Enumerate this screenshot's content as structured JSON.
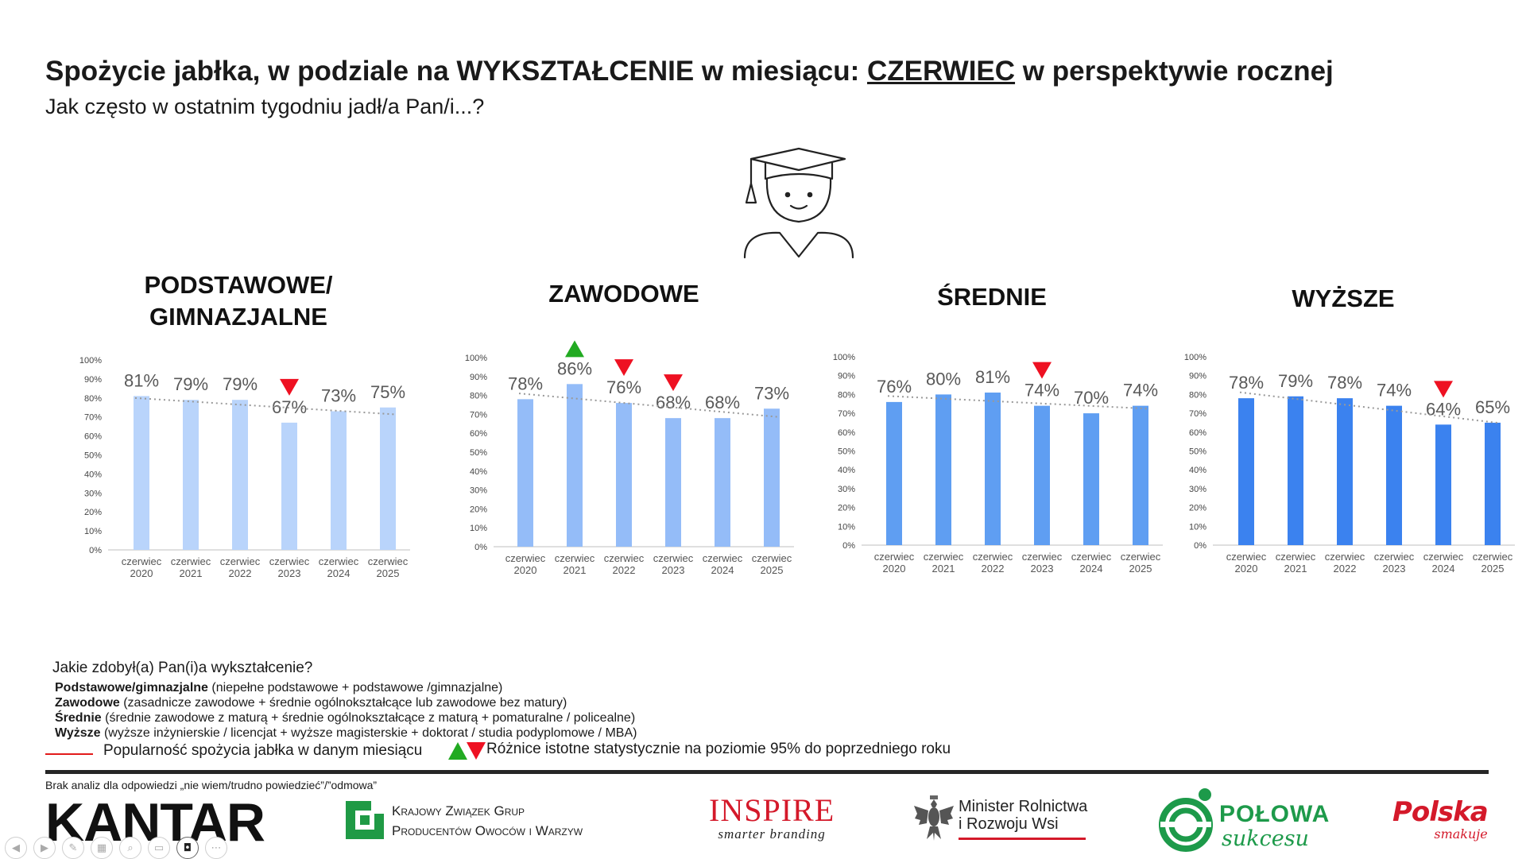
{
  "header": {
    "title_part1": "Spożycie jabłka, w podziale na WYKSZTAŁCENIE w miesiącu: ",
    "title_underlined": "CZERWIEC",
    "title_part2": " w perspektywie rocznej",
    "subtitle": "Jak często w ostatnim tygodniu jadł/a Pan/i...?"
  },
  "icons": {
    "graduate": "graduate-icon",
    "sig_up": "triangle-up-icon",
    "sig_down": "triangle-down-icon"
  },
  "colors": {
    "bars": [
      "#b9d4fb",
      "#94bcf8",
      "#5f9ef2",
      "#3b82ef"
    ],
    "sig_up": "#22aa22",
    "sig_down": "#ee1122",
    "trend": "#999999",
    "popularity_line": "#e21a1a"
  },
  "chart_data": [
    {
      "type": "bar",
      "title": "PODSTAWOWE/\nGIMNAZJALNE",
      "categories": [
        "czerwiec\n2020",
        "czerwiec\n2021",
        "czerwiec\n2022",
        "czerwiec\n2023",
        "czerwiec\n2024",
        "czerwiec\n2025"
      ],
      "values": [
        81,
        79,
        79,
        67,
        73,
        75
      ],
      "labels": [
        "81%",
        "79%",
        "79%",
        "67%",
        "73%",
        "75%"
      ],
      "significance": [
        null,
        null,
        null,
        "down",
        null,
        null
      ],
      "trendline": true,
      "ylim": [
        0,
        100
      ],
      "yticks": [
        "0%",
        "10%",
        "20%",
        "30%",
        "40%",
        "50%",
        "60%",
        "70%",
        "80%",
        "90%",
        "100%"
      ]
    },
    {
      "type": "bar",
      "title": "ZAWODOWE",
      "categories": [
        "czerwiec\n2020",
        "czerwiec\n2021",
        "czerwiec\n2022",
        "czerwiec\n2023",
        "czerwiec\n2024",
        "czerwiec\n2025"
      ],
      "values": [
        78,
        86,
        76,
        68,
        68,
        73
      ],
      "labels": [
        "78%",
        "86%",
        "76%",
        "68%",
        "68%",
        "73%"
      ],
      "significance": [
        null,
        "up",
        "down",
        "down",
        null,
        null
      ],
      "trendline": true,
      "ylim": [
        0,
        100
      ],
      "yticks": [
        "0%",
        "10%",
        "20%",
        "30%",
        "40%",
        "50%",
        "60%",
        "70%",
        "80%",
        "90%",
        "100%"
      ]
    },
    {
      "type": "bar",
      "title": "ŚREDNIE",
      "categories": [
        "czerwiec\n2020",
        "czerwiec\n2021",
        "czerwiec\n2022",
        "czerwiec\n2023",
        "czerwiec\n2024",
        "czerwiec\n2025"
      ],
      "values": [
        76,
        80,
        81,
        74,
        70,
        74
      ],
      "labels": [
        "76%",
        "80%",
        "81%",
        "74%",
        "70%",
        "74%"
      ],
      "significance": [
        null,
        null,
        null,
        "down",
        null,
        null
      ],
      "trendline": true,
      "ylim": [
        0,
        100
      ],
      "yticks": [
        "0%",
        "10%",
        "20%",
        "30%",
        "40%",
        "50%",
        "60%",
        "70%",
        "80%",
        "90%",
        "100%"
      ]
    },
    {
      "type": "bar",
      "title": "WYŻSZE",
      "categories": [
        "czerwiec\n2020",
        "czerwiec\n2021",
        "czerwiec\n2022",
        "czerwiec\n2023",
        "czerwiec\n2024",
        "czerwiec\n2025"
      ],
      "values": [
        78,
        79,
        78,
        74,
        64,
        65
      ],
      "labels": [
        "78%",
        "79%",
        "78%",
        "74%",
        "64%",
        "65%"
      ],
      "significance": [
        null,
        null,
        null,
        null,
        "down",
        null
      ],
      "trendline": true,
      "ylim": [
        0,
        100
      ],
      "yticks": [
        "0%",
        "10%",
        "20%",
        "30%",
        "40%",
        "50%",
        "60%",
        "70%",
        "80%",
        "90%",
        "100%"
      ]
    }
  ],
  "legend": {
    "question": "Jakie zdobył(a) Pan(i)a wykształcenie?",
    "definitions": [
      {
        "term": "Podstawowe/gimnazjalne",
        "desc": " (niepełne podstawowe +  podstawowe /gimnazjalne)"
      },
      {
        "term": "Zawodowe",
        "desc": " (zasadnicze zawodowe +  średnie ogólnokształcące lub zawodowe bez matury)"
      },
      {
        "term": "Średnie",
        "desc": " (średnie zawodowe z maturą + średnie ogólnokształcące z maturą + pomaturalne / policealne)"
      },
      {
        "term": "Wyższe",
        "desc": " (wyższe inżynierskie / licencjat + wyższe magisterskie + doktorat / studia podyplomowe / MBA)"
      }
    ],
    "line_label": "Popularność spożycia jabłka w danym miesiącu",
    "significance_label": "Różnice istotne statystycznie na poziomie 95% do poprzedniego roku"
  },
  "footnote": "Brak analiz dla odpowiedzi „nie wiem/trudno powiedzieć”/”odmowa”",
  "logos": {
    "kantar": "KANTAR",
    "kzg_line1": "Krajowy Związek Grup",
    "kzg_line2": "Producentów Owoców i Warzyw",
    "inspire_main": "INSPIRE",
    "inspire_sub": "smarter branding",
    "ministry_line1": "Minister Rolnictwa",
    "ministry_line2": "i Rozwoju Wsi",
    "polowa_line1": "POŁOWA",
    "polowa_line2": "sukcesu",
    "polska_line1": "Polska",
    "polska_line2": "smakuje"
  },
  "toolbar": [
    {
      "name": "prev-slide-button",
      "glyph": "◀"
    },
    {
      "name": "next-slide-button",
      "glyph": "▶"
    },
    {
      "name": "pen-button",
      "glyph": "✎"
    },
    {
      "name": "slides-button",
      "glyph": "▦"
    },
    {
      "name": "zoom-button",
      "glyph": "⌕"
    },
    {
      "name": "subtitles-button",
      "glyph": "▭"
    },
    {
      "name": "camera-button",
      "glyph": "◘"
    },
    {
      "name": "more-button",
      "glyph": "⋯"
    }
  ]
}
